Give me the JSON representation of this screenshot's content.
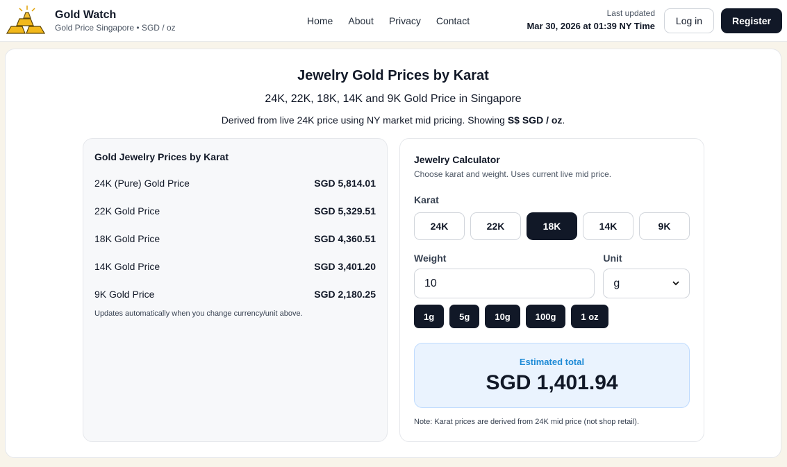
{
  "header": {
    "brand": "Gold Watch",
    "tagline": "Gold Price Singapore • SGD / oz",
    "nav": [
      "Home",
      "About",
      "Privacy",
      "Contact"
    ],
    "updated_label": "Last updated",
    "updated_time": "Mar 30, 2026 at 01:39 NY Time",
    "login": "Log in",
    "register": "Register"
  },
  "hero": {
    "title": "Jewelry Gold Prices by Karat",
    "subtitle": "24K, 22K, 18K, 14K and 9K Gold Price in Singapore",
    "note_prefix": "Derived from live 24K price using NY market mid pricing. Showing ",
    "note_bold": "S$ SGD / oz",
    "note_suffix": "."
  },
  "prices": {
    "title": "Gold Jewelry Prices by Karat",
    "rows": [
      [
        "24K (Pure) Gold Price",
        "SGD 5,814.01"
      ],
      [
        "22K Gold Price",
        "SGD 5,329.51"
      ],
      [
        "18K Gold Price",
        "SGD 4,360.51"
      ],
      [
        "14K Gold Price",
        "SGD 3,401.20"
      ],
      [
        "9K Gold Price",
        "SGD 2,180.25"
      ]
    ],
    "footnote": "Updates automatically when you change currency/unit above."
  },
  "calculator": {
    "title": "Jewelry Calculator",
    "subtitle": "Choose karat and weight. Uses current live mid price.",
    "karat_label": "Karat",
    "karats": [
      "24K",
      "22K",
      "18K",
      "14K",
      "9K"
    ],
    "weight_label": "Weight",
    "weight": "10",
    "unit_label": "Unit",
    "unit": "g",
    "presets": [
      "1g",
      "5g",
      "10g",
      "100g",
      "1 oz"
    ],
    "total_label": "Estimated total",
    "total": "SGD 1,401.94",
    "note": "Note: Karat prices are derived from 24K mid price (not shop retail)."
  }
}
